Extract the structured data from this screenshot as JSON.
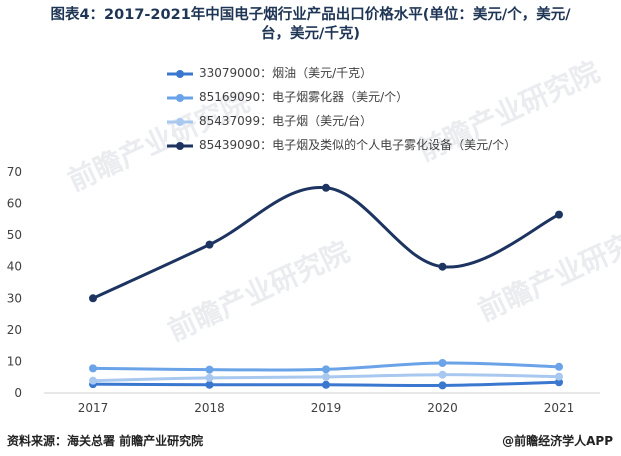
{
  "title_line1": "图表4：2017-2021年中国电子烟行业产品出口价格水平(单位：美元/个，美元/",
  "title_line2": "台，美元/千克)",
  "footer": {
    "source": "资料来源：海关总署 前瞻产业研究院",
    "brand": "@前瞻经济学人APP"
  },
  "watermark": "前瞻产业研究院",
  "chart_data": {
    "type": "line",
    "x": [
      "2017",
      "2018",
      "2019",
      "2020",
      "2021"
    ],
    "ylim": [
      0,
      70
    ],
    "yticks": [
      0,
      10,
      20,
      30,
      40,
      50,
      60,
      70
    ],
    "grid": false,
    "legend_position": "top",
    "series": [
      {
        "name": "33079000：烟油（美元/千克）",
        "color": "#3a78d0",
        "values": [
          2.8,
          2.6,
          2.6,
          2.4,
          3.4
        ]
      },
      {
        "name": "85169090：电子烟雾化器（美元/个）",
        "color": "#6aa3e8",
        "values": [
          7.8,
          7.4,
          7.5,
          9.5,
          8.3
        ]
      },
      {
        "name": "85437099：电子烟（美元/台）",
        "color": "#a8c8ef",
        "values": [
          3.9,
          4.8,
          5.1,
          5.8,
          5.2
        ]
      },
      {
        "name": "85439090：电子烟及类似的个人电子雾化设备（美元/个）",
        "color": "#1d3461",
        "values": [
          30,
          47,
          65,
          40,
          56.5
        ]
      }
    ]
  }
}
